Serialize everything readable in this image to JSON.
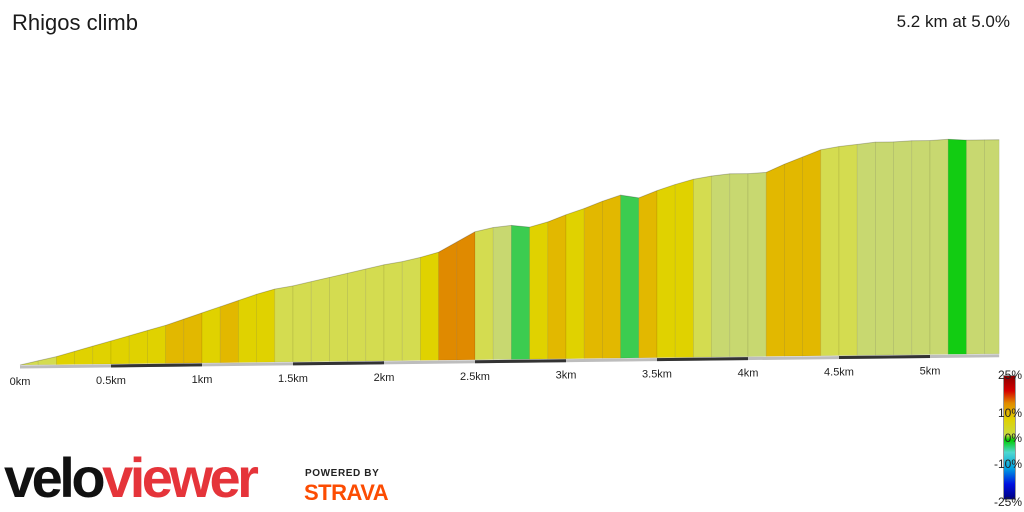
{
  "header": {
    "title": "Rhigos climb",
    "summary": "5.2 km at 5.0%"
  },
  "chart_data": {
    "type": "area",
    "title": "Rhigos climb",
    "subtitle": "5.2 km at 5.0%",
    "xlabel": "",
    "ylabel": "",
    "x_unit": "km",
    "xlim": [
      0,
      5.38
    ],
    "ylim": [
      0,
      250
    ],
    "x_tick_labels": [
      "0km",
      "0.5km",
      "1km",
      "1.5km",
      "2km",
      "2.5km",
      "3km",
      "3.5km",
      "4km",
      "4.5km",
      "5km"
    ],
    "x_ticks": [
      0,
      0.5,
      1,
      1.5,
      2,
      2.5,
      3,
      3.5,
      4,
      4.5,
      5
    ],
    "distance_km": [
      0,
      0.1,
      0.2,
      0.3,
      0.4,
      0.5,
      0.6,
      0.7,
      0.8,
      0.9,
      1.0,
      1.1,
      1.2,
      1.3,
      1.4,
      1.5,
      1.6,
      1.7,
      1.8,
      1.9,
      2.0,
      2.1,
      2.2,
      2.3,
      2.4,
      2.5,
      2.6,
      2.7,
      2.8,
      2.9,
      3.0,
      3.1,
      3.2,
      3.3,
      3.4,
      3.5,
      3.6,
      3.7,
      3.8,
      3.9,
      4.0,
      4.1,
      4.2,
      4.3,
      4.4,
      4.5,
      4.6,
      4.7,
      4.8,
      4.9,
      5.0,
      5.1,
      5.2,
      5.3,
      5.38
    ],
    "elevation_m": [
      0,
      4,
      8,
      13,
      18,
      23,
      28,
      33,
      38,
      44,
      50,
      56,
      62,
      68,
      73,
      76,
      80,
      84,
      88,
      92,
      96,
      99,
      103,
      108,
      118,
      128,
      132,
      134,
      132,
      137,
      144,
      150,
      157,
      163,
      160,
      167,
      173,
      178,
      181,
      183,
      183,
      184,
      192,
      199,
      206,
      209,
      211,
      213,
      213,
      214,
      214,
      215,
      214,
      214,
      214
    ],
    "gradient_scale": {
      "labels": [
        "25%",
        "10%",
        "0%",
        "-10%",
        "-25%"
      ],
      "values": [
        25,
        10,
        0,
        -10,
        -25
      ],
      "colors": {
        "25": "#8b0000",
        "18": "#d40000",
        "13": "#e05000",
        "10": "#e08a00",
        "7": "#e0b000",
        "4": "#e0d000",
        "1": "#d0d860",
        "0": "#00cc00",
        "-2": "#3ccc50",
        "-5": "#4fd8d0",
        "-10": "#00a0e0",
        "-18": "#0010e0",
        "-25": "#000080"
      }
    },
    "grid": false,
    "legend": "right"
  },
  "branding": {
    "logo_part1": "velo",
    "logo_part2": "viewer",
    "powered_by": "POWERED BY",
    "strava": "STRAVA"
  }
}
